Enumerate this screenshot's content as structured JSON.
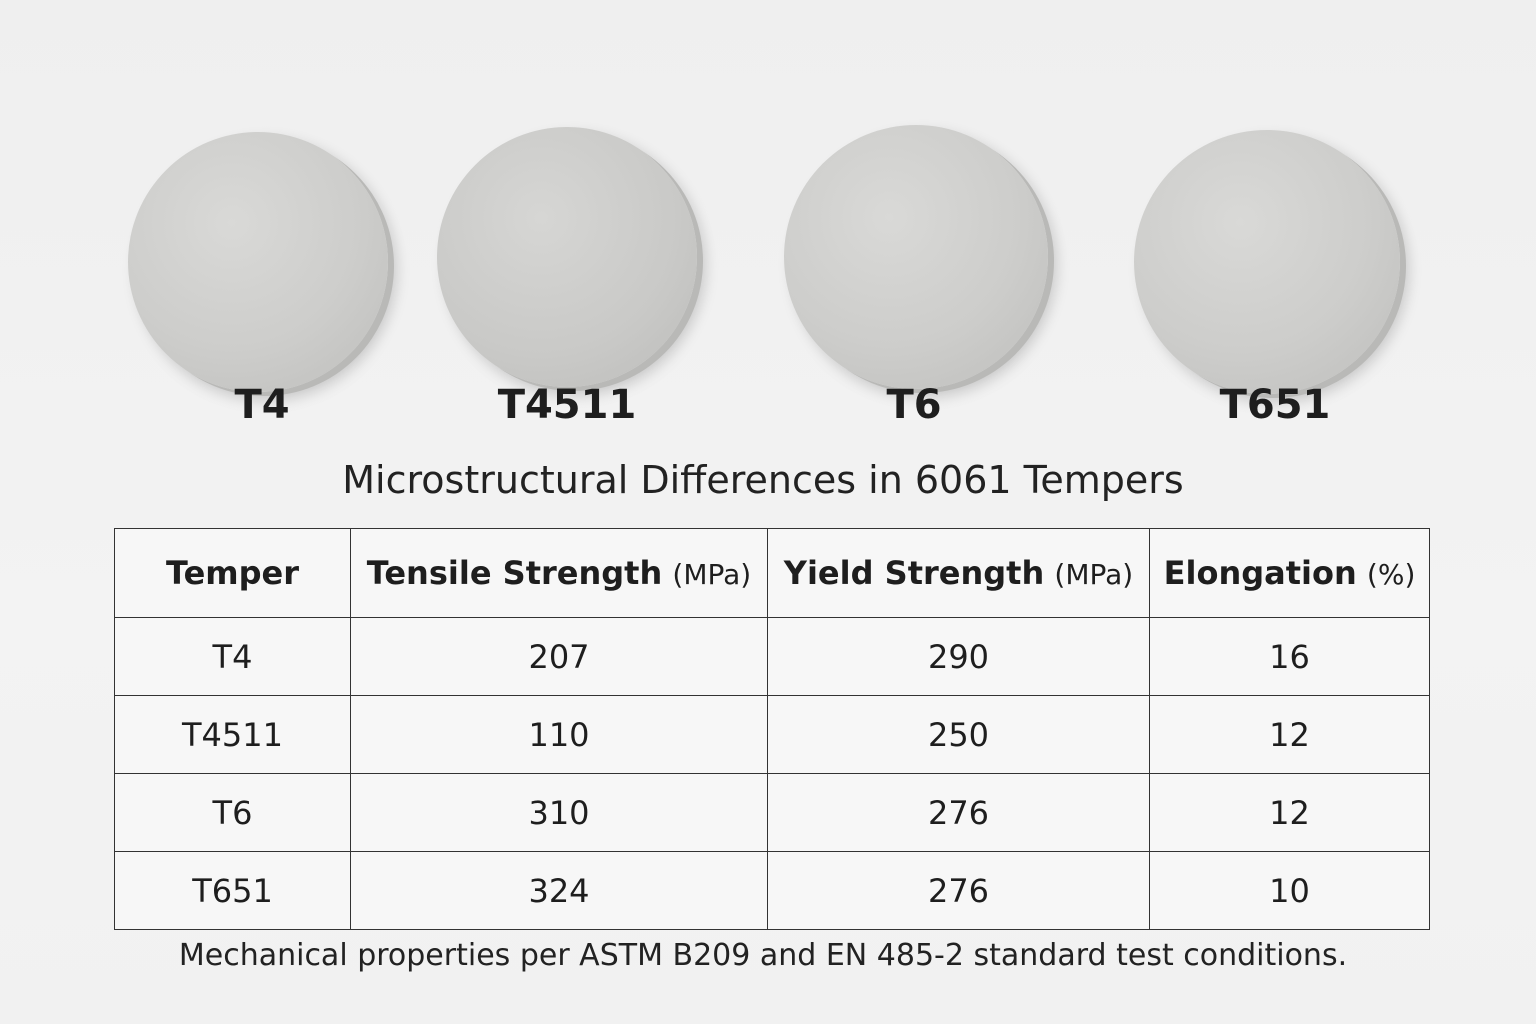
{
  "samples": [
    {
      "label": "T4"
    },
    {
      "label": "T4511"
    },
    {
      "label": "T6"
    },
    {
      "label": "T651"
    }
  ],
  "title": "Microstructural Differences in 6061 Tempers",
  "table": {
    "headers": [
      {
        "main": "Temper",
        "unit": ""
      },
      {
        "main": "Tensile Strength",
        "unit": "(MPa)"
      },
      {
        "main": "Yield Strength",
        "unit": "(MPa)"
      },
      {
        "main": "Elongation",
        "unit": "(%)"
      }
    ],
    "rows": [
      [
        "T4",
        "207",
        "290",
        "16"
      ],
      [
        "T4511",
        "110",
        "250",
        "12"
      ],
      [
        "T6",
        "310",
        "276",
        "12"
      ],
      [
        "T651",
        "324",
        "276",
        "10"
      ]
    ]
  },
  "footnote": "Mechanical properties per ASTM B209 and EN 485-2 standard test conditions."
}
